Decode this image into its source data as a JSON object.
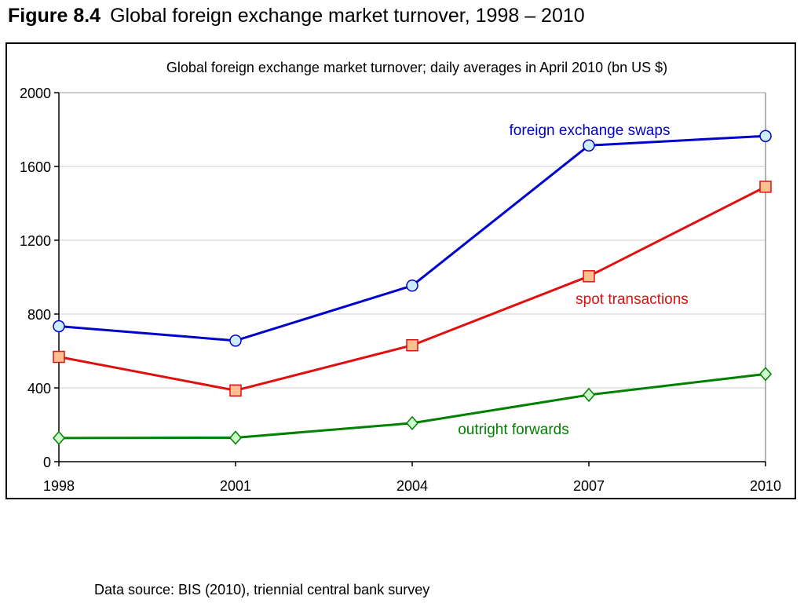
{
  "figure": {
    "label": "Figure 8.4",
    "title": "Global foreign exchange market turnover, 1998 – 2010"
  },
  "source": "Data source: BIS (2010), triennial central bank survey",
  "chart_data": {
    "type": "line",
    "title": "Global foreign exchange market turnover; daily averages in April 2010 (bn US $)",
    "xlabel": "",
    "ylabel": "",
    "x": [
      1998,
      2001,
      2004,
      2007,
      2010
    ],
    "x_tick_labels": [
      "1998",
      "2001",
      "2004",
      "2007",
      "2010"
    ],
    "ylim": [
      0,
      2000
    ],
    "y_ticks": [
      0,
      400,
      800,
      1200,
      1600,
      2000
    ],
    "y_tick_labels": [
      "0",
      "400",
      "800",
      "1200",
      "1600",
      "2000"
    ],
    "grid": "horizontal",
    "series": [
      {
        "name": "foreign exchange swaps",
        "values": [
          734,
          656,
          954,
          1714,
          1765
        ],
        "color": "#0000cc",
        "marker": "circle",
        "marker_fill": "#ccecff"
      },
      {
        "name": "spot transactions",
        "values": [
          568,
          386,
          631,
          1005,
          1490
        ],
        "color": "#e01010",
        "marker": "square",
        "marker_fill": "#ffc090"
      },
      {
        "name": "outright forwards",
        "values": [
          128,
          130,
          209,
          362,
          475
        ],
        "color": "#008000",
        "marker": "diamond",
        "marker_fill": "#ccffcc"
      }
    ]
  }
}
